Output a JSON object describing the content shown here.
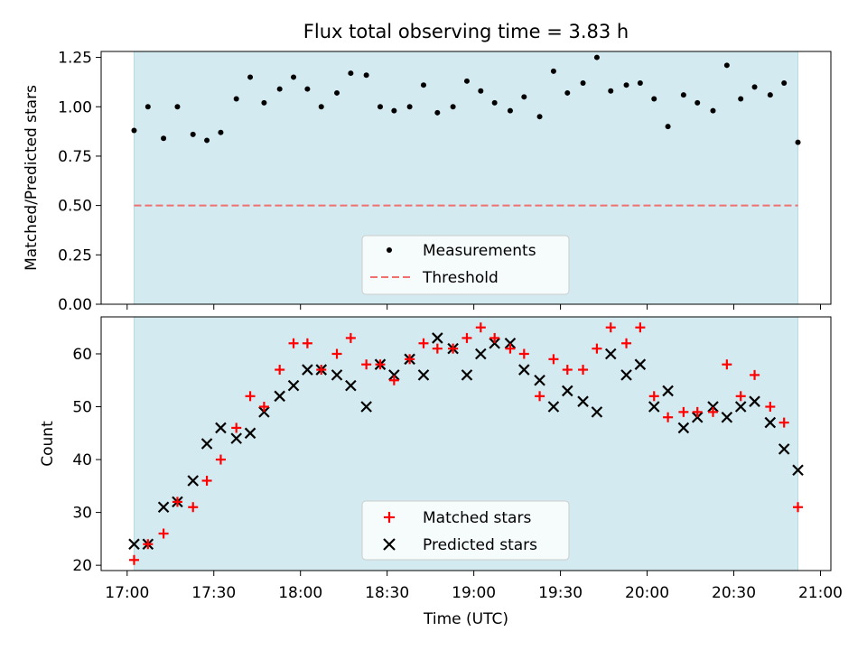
{
  "chart_data": [
    {
      "type": "scatter",
      "title": "Flux total observing time = 3.83 h",
      "xlabel": "",
      "ylabel": "Matched/Predicted stars",
      "ylim": [
        0,
        1.28
      ],
      "yticks": [
        0,
        0.25,
        0.5,
        0.75,
        1.0,
        1.25
      ],
      "ytick_labels": [
        "0.00",
        "0.25",
        "0.50",
        "0.75",
        "1.00",
        "1.25"
      ],
      "observing_span": [
        17.04,
        20.87
      ],
      "series": [
        {
          "name": "Measurements",
          "marker": "dot",
          "color": "#000000",
          "x": [
            17.04,
            17.12,
            17.21,
            17.29,
            17.38,
            17.46,
            17.54,
            17.63,
            17.71,
            17.79,
            17.88,
            17.96,
            18.04,
            18.12,
            18.21,
            18.29,
            18.38,
            18.46,
            18.54,
            18.63,
            18.71,
            18.79,
            18.88,
            18.96,
            19.04,
            19.12,
            19.21,
            19.29,
            19.38,
            19.46,
            19.54,
            19.63,
            19.71,
            19.79,
            19.88,
            19.96,
            20.04,
            20.12,
            20.21,
            20.29,
            20.38,
            20.46,
            20.54,
            20.62,
            20.71,
            20.79,
            20.87
          ],
          "y": [
            0.88,
            1.0,
            0.84,
            1.0,
            0.86,
            0.83,
            0.87,
            1.04,
            1.15,
            1.02,
            1.09,
            1.15,
            1.09,
            1.0,
            1.07,
            1.17,
            1.16,
            1.0,
            0.98,
            1.0,
            1.11,
            0.97,
            1.0,
            1.13,
            1.08,
            1.02,
            0.98,
            1.05,
            0.95,
            1.18,
            1.07,
            1.12,
            1.25,
            1.08,
            1.11,
            1.12,
            1.04,
            0.9,
            1.06,
            1.02,
            0.98,
            1.21,
            1.04,
            1.1,
            1.06,
            1.12,
            0.82
          ]
        },
        {
          "name": "Threshold",
          "marker": "dashed-line",
          "color": "#f07070",
          "x": [
            17.04,
            20.87
          ],
          "y": [
            0.5,
            0.5
          ]
        }
      ],
      "legend": "lower-center"
    },
    {
      "type": "scatter",
      "title": "",
      "xlabel": "Time (UTC)",
      "ylabel": "Count",
      "xlim": [
        16.85,
        21.06
      ],
      "ylim": [
        19,
        67
      ],
      "yticks": [
        20,
        30,
        40,
        50,
        60
      ],
      "ytick_labels": [
        "20",
        "30",
        "40",
        "50",
        "60"
      ],
      "xticks": [
        17.0,
        17.5,
        18.0,
        18.5,
        19.0,
        19.5,
        20.0,
        20.5,
        21.0
      ],
      "xtick_labels": [
        "17:00",
        "17:30",
        "18:00",
        "18:30",
        "19:00",
        "19:30",
        "20:00",
        "20:30",
        "21:00"
      ],
      "observing_span": [
        17.04,
        20.87
      ],
      "series": [
        {
          "name": "Matched stars",
          "marker": "plus",
          "color": "#ff0000",
          "x": [
            17.04,
            17.12,
            17.21,
            17.29,
            17.38,
            17.46,
            17.54,
            17.63,
            17.71,
            17.79,
            17.88,
            17.96,
            18.04,
            18.12,
            18.21,
            18.29,
            18.38,
            18.46,
            18.54,
            18.63,
            18.71,
            18.79,
            18.88,
            18.96,
            19.04,
            19.12,
            19.21,
            19.29,
            19.38,
            19.46,
            19.54,
            19.63,
            19.71,
            19.79,
            19.88,
            19.96,
            20.04,
            20.12,
            20.21,
            20.29,
            20.38,
            20.46,
            20.54,
            20.62,
            20.71,
            20.79,
            20.87
          ],
          "y": [
            21,
            24,
            26,
            32,
            31,
            36,
            40,
            46,
            52,
            50,
            57,
            62,
            62,
            57,
            60,
            63,
            58,
            58,
            55,
            59,
            62,
            61,
            61,
            63,
            65,
            63,
            61,
            60,
            52,
            59,
            57,
            57,
            61,
            65,
            62,
            65,
            52,
            48,
            49,
            49,
            49,
            58,
            52,
            56,
            50,
            47,
            31
          ]
        },
        {
          "name": "Predicted stars",
          "marker": "x",
          "color": "#000000",
          "x": [
            17.04,
            17.12,
            17.21,
            17.29,
            17.38,
            17.46,
            17.54,
            17.63,
            17.71,
            17.79,
            17.88,
            17.96,
            18.04,
            18.12,
            18.21,
            18.29,
            18.38,
            18.46,
            18.54,
            18.63,
            18.71,
            18.79,
            18.88,
            18.96,
            19.04,
            19.12,
            19.21,
            19.29,
            19.38,
            19.46,
            19.54,
            19.63,
            19.71,
            19.79,
            19.88,
            19.96,
            20.04,
            20.12,
            20.21,
            20.29,
            20.38,
            20.46,
            20.54,
            20.62,
            20.71,
            20.79,
            20.87
          ],
          "y": [
            24,
            24,
            31,
            32,
            36,
            43,
            46,
            44,
            45,
            49,
            52,
            54,
            57,
            57,
            56,
            54,
            50,
            58,
            56,
            59,
            56,
            63,
            61,
            56,
            60,
            62,
            62,
            57,
            55,
            50,
            53,
            51,
            49,
            60,
            56,
            58,
            50,
            53,
            46,
            48,
            50,
            48,
            50,
            51,
            47,
            42,
            38
          ]
        }
      ],
      "legend": "lower-center"
    }
  ],
  "colors": {
    "span": "#d3eaf0",
    "span_edge": "#b7d9e3",
    "threshold": "#f07070",
    "matched": "#ff0000",
    "predicted": "#000000"
  }
}
